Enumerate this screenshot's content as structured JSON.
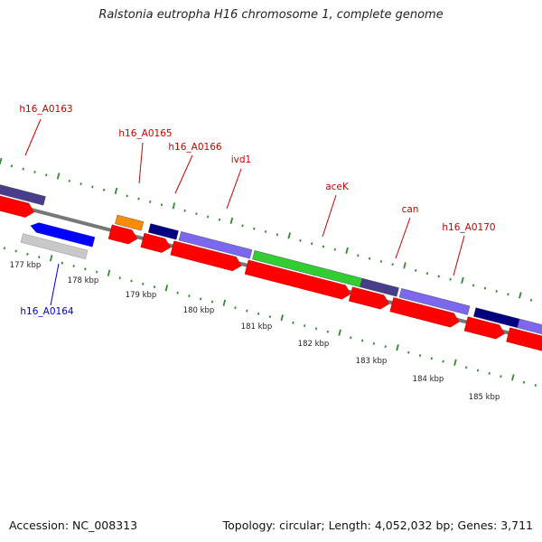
{
  "title": "Ralstonia eutropha H16 chromosome 1, complete genome",
  "footer": {
    "accession": "Accession: NC_008313",
    "summary": "Topology: circular; Length: 4,052,032 bp; Genes: 3,711"
  },
  "colors": {
    "backbone": "#777777",
    "tick_major": "#2e8b2e",
    "tick_minor": "#2e8b2e",
    "label_forward": "#cc0000",
    "label_reverse": "#0000cc"
  },
  "kbp_labels": [
    "177 kbp",
    "178 kbp",
    "179 kbp",
    "180 kbp",
    "181 kbp",
    "182 kbp",
    "183 kbp",
    "184 kbp",
    "185 kbp"
  ],
  "genes": [
    {
      "id": "h16_A0163",
      "label": "h16_A0163",
      "strand": "forward",
      "color": "#483d8b",
      "labeled": true
    },
    {
      "id": "h16_A0165",
      "label": "h16_A0165",
      "strand": "forward",
      "color": "#ff8c00",
      "labeled": true
    },
    {
      "id": "h16_A0166",
      "label": "h16_A0166",
      "strand": "forward",
      "color": "#000080",
      "labeled": true
    },
    {
      "id": "ivd1",
      "label": "ivd1",
      "strand": "forward",
      "color": "#7b68ee",
      "labeled": true
    },
    {
      "id": "aceK",
      "label": "aceK",
      "strand": "forward",
      "color": "#32cd32",
      "labeled": true
    },
    {
      "id": "can",
      "label": "can",
      "strand": "forward",
      "color": "#483d8b",
      "labeled": true
    },
    {
      "id": "h16_A0170",
      "label": "h16_A0170",
      "strand": "forward",
      "color": "#7b68ee",
      "labeled": true
    },
    {
      "id": "h16_A0171",
      "label": "",
      "strand": "forward",
      "color": "#000080",
      "labeled": false
    },
    {
      "id": "h16_A0172",
      "label": "",
      "strand": "forward",
      "color": "#7b68ee",
      "labeled": false
    },
    {
      "id": "h16_A0164",
      "label": "h16_A0164",
      "strand": "reverse",
      "color": "#0000ff",
      "labeled": true
    }
  ]
}
